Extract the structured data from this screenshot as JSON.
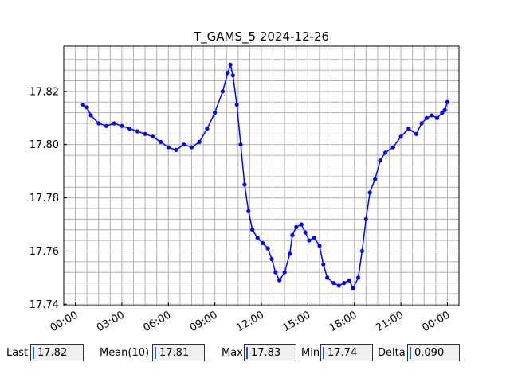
{
  "chart_data": {
    "type": "line",
    "title": "T_GAMS_5 2024-12-26",
    "xlabel": "",
    "ylabel": "",
    "x_tick_labels": [
      "00:00",
      "03:00",
      "06:00",
      "09:00",
      "12:00",
      "15:00",
      "18:00",
      "21:00",
      "00:00"
    ],
    "y_tick_labels": [
      "17.74",
      "17.76",
      "17.78",
      "17.80",
      "17.82"
    ],
    "ylim": [
      17.7395,
      17.837
    ],
    "grid": true,
    "series": [
      {
        "color": "#0000ff",
        "marker": "dot",
        "points": [
          [
            "2024-12-26 00:30",
            17.815
          ],
          [
            "2024-12-26 00:45",
            17.814
          ],
          [
            "2024-12-26 01:00",
            17.811
          ],
          [
            "2024-12-26 01:30",
            17.808
          ],
          [
            "2024-12-26 02:00",
            17.807
          ],
          [
            "2024-12-26 02:30",
            17.808
          ],
          [
            "2024-12-26 03:00",
            17.807
          ],
          [
            "2024-12-26 03:30",
            17.806
          ],
          [
            "2024-12-26 04:00",
            17.805
          ],
          [
            "2024-12-26 04:30",
            17.804
          ],
          [
            "2024-12-26 05:00",
            17.803
          ],
          [
            "2024-12-26 05:30",
            17.801
          ],
          [
            "2024-12-26 06:00",
            17.799
          ],
          [
            "2024-12-26 06:30",
            17.798
          ],
          [
            "2024-12-26 07:00",
            17.8
          ],
          [
            "2024-12-26 07:30",
            17.799
          ],
          [
            "2024-12-26 08:00",
            17.801
          ],
          [
            "2024-12-26 08:30",
            17.806
          ],
          [
            "2024-12-26 09:00",
            17.812
          ],
          [
            "2024-12-26 09:30",
            17.82
          ],
          [
            "2024-12-26 09:50",
            17.827
          ],
          [
            "2024-12-26 10:00",
            17.83
          ],
          [
            "2024-12-26 10:10",
            17.826
          ],
          [
            "2024-12-26 10:25",
            17.815
          ],
          [
            "2024-12-26 10:40",
            17.8
          ],
          [
            "2024-12-26 10:55",
            17.785
          ],
          [
            "2024-12-26 11:10",
            17.775
          ],
          [
            "2024-12-26 11:25",
            17.768
          ],
          [
            "2024-12-26 11:45",
            17.765
          ],
          [
            "2024-12-26 12:05",
            17.763
          ],
          [
            "2024-12-26 12:25",
            17.761
          ],
          [
            "2024-12-26 12:40",
            17.757
          ],
          [
            "2024-12-26 12:55",
            17.752
          ],
          [
            "2024-12-26 13:10",
            17.749
          ],
          [
            "2024-12-26 13:30",
            17.752
          ],
          [
            "2024-12-26 13:50",
            17.759
          ],
          [
            "2024-12-26 14:00",
            17.766
          ],
          [
            "2024-12-26 14:15",
            17.769
          ],
          [
            "2024-12-26 14:35",
            17.77
          ],
          [
            "2024-12-26 14:50",
            17.767
          ],
          [
            "2024-12-26 15:05",
            17.764
          ],
          [
            "2024-12-26 15:25",
            17.765
          ],
          [
            "2024-12-26 15:45",
            17.762
          ],
          [
            "2024-12-26 16:00",
            17.755
          ],
          [
            "2024-12-26 16:15",
            17.75
          ],
          [
            "2024-12-26 16:40",
            17.748
          ],
          [
            "2024-12-26 17:00",
            17.747
          ],
          [
            "2024-12-26 17:20",
            17.748
          ],
          [
            "2024-12-26 17:40",
            17.749
          ],
          [
            "2024-12-26 17:55",
            17.746
          ],
          [
            "2024-12-26 18:15",
            17.75
          ],
          [
            "2024-12-26 18:30",
            17.76
          ],
          [
            "2024-12-26 18:45",
            17.772
          ],
          [
            "2024-12-26 19:00",
            17.782
          ],
          [
            "2024-12-26 19:20",
            17.787
          ],
          [
            "2024-12-26 19:40",
            17.794
          ],
          [
            "2024-12-26 20:00",
            17.797
          ],
          [
            "2024-12-26 20:30",
            17.799
          ],
          [
            "2024-12-26 21:00",
            17.803
          ],
          [
            "2024-12-26 21:30",
            17.806
          ],
          [
            "2024-12-26 22:00",
            17.804
          ],
          [
            "2024-12-26 22:20",
            17.808
          ],
          [
            "2024-12-26 22:40",
            17.81
          ],
          [
            "2024-12-26 23:00",
            17.811
          ],
          [
            "2024-12-26 23:20",
            17.81
          ],
          [
            "2024-12-26 23:40",
            17.812
          ],
          [
            "2024-12-26 23:50",
            17.813
          ],
          [
            "2024-12-27 00:00",
            17.816
          ]
        ]
      }
    ]
  },
  "stats": [
    {
      "label": "Last",
      "value": "17.82"
    },
    {
      "label": "Mean(10)",
      "value": "17.81"
    },
    {
      "label": "Max",
      "value": "17.83"
    },
    {
      "label": "Min",
      "value": "17.74"
    },
    {
      "label": "Delta",
      "value": "0.090"
    }
  ]
}
